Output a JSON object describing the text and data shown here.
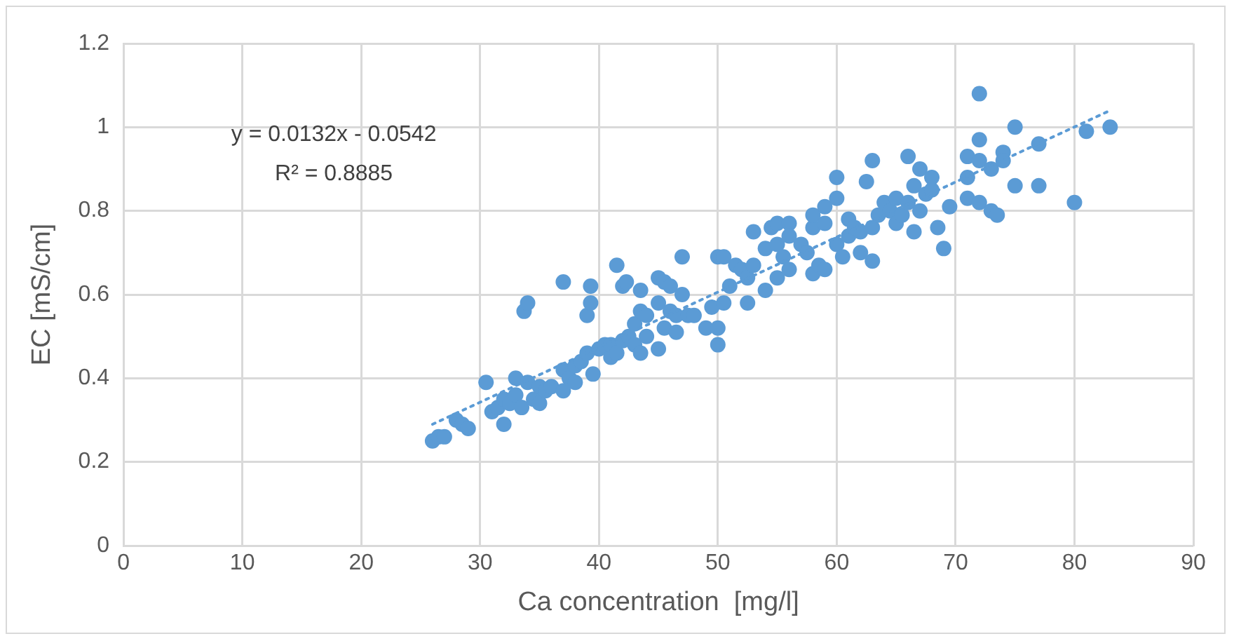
{
  "chart_data": {
    "type": "scatter",
    "xlabel": "Ca concentration  [mg/l]",
    "ylabel": "EC [mS/cm]",
    "xlim": [
      0,
      90
    ],
    "xticks": [
      0,
      10,
      20,
      30,
      40,
      50,
      60,
      70,
      80,
      90
    ],
    "ylim": [
      0,
      1.2
    ],
    "yticks": [
      0,
      0.2,
      0.4,
      0.6,
      0.8,
      1,
      1.2
    ],
    "grid": true,
    "legend": false,
    "marker": "circle",
    "annotations": [
      "y = 0.0132x - 0.0542",
      "R² = 0.8885"
    ],
    "series": [
      {
        "color": "#5b9bd5",
        "x": [
          26,
          26.5,
          27,
          28,
          28.5,
          29,
          30.5,
          31,
          31.5,
          32,
          32,
          32.5,
          33,
          33,
          33.5,
          33.7,
          34,
          34,
          34.5,
          35,
          35,
          35.5,
          36,
          37,
          37,
          37,
          37.5,
          38,
          38,
          38.5,
          39,
          39,
          39.3,
          39.3,
          39.5,
          40,
          40.5,
          41,
          41,
          41.5,
          41.5,
          42,
          42,
          42.3,
          42.5,
          43,
          43,
          43.5,
          43.5,
          43.5,
          44,
          44,
          45,
          45,
          45,
          45.5,
          45.5,
          46,
          46,
          46.5,
          46.5,
          47,
          47,
          47.5,
          48,
          49,
          49.5,
          50,
          50,
          50,
          50.5,
          50.5,
          51,
          51.5,
          52,
          52.5,
          52.5,
          53,
          53,
          54,
          54,
          54.5,
          55,
          55,
          55,
          55.5,
          56,
          56,
          56,
          57,
          57.5,
          58,
          58,
          58,
          58.5,
          59,
          59,
          59,
          60,
          60,
          60,
          60.5,
          61,
          61,
          61.5,
          62,
          62,
          62.5,
          63,
          63,
          63,
          63.5,
          64,
          64.5,
          65,
          65,
          65.5,
          66,
          66,
          66.5,
          66.5,
          67,
          67,
          67.5,
          68,
          68,
          68.5,
          69,
          69.5,
          71,
          71,
          71,
          72,
          72,
          72,
          72,
          73,
          73,
          73.5,
          74,
          74,
          75,
          75,
          77,
          77,
          80,
          81,
          83
        ],
        "values": [
          0.25,
          0.26,
          0.26,
          0.3,
          0.29,
          0.28,
          0.39,
          0.32,
          0.33,
          0.29,
          0.35,
          0.34,
          0.4,
          0.36,
          0.33,
          0.56,
          0.58,
          0.39,
          0.35,
          0.38,
          0.34,
          0.37,
          0.38,
          0.63,
          0.42,
          0.37,
          0.4,
          0.43,
          0.39,
          0.44,
          0.55,
          0.46,
          0.58,
          0.62,
          0.41,
          0.47,
          0.48,
          0.45,
          0.48,
          0.67,
          0.46,
          0.62,
          0.49,
          0.63,
          0.5,
          0.53,
          0.48,
          0.61,
          0.56,
          0.46,
          0.5,
          0.55,
          0.64,
          0.47,
          0.58,
          0.52,
          0.63,
          0.56,
          0.62,
          0.51,
          0.55,
          0.6,
          0.69,
          0.55,
          0.55,
          0.52,
          0.57,
          0.48,
          0.52,
          0.69,
          0.58,
          0.69,
          0.62,
          0.67,
          0.66,
          0.58,
          0.64,
          0.75,
          0.67,
          0.61,
          0.71,
          0.76,
          0.64,
          0.77,
          0.72,
          0.69,
          0.66,
          0.77,
          0.74,
          0.72,
          0.7,
          0.65,
          0.76,
          0.79,
          0.67,
          0.77,
          0.81,
          0.66,
          0.88,
          0.83,
          0.72,
          0.69,
          0.74,
          0.78,
          0.76,
          0.7,
          0.75,
          0.87,
          0.92,
          0.68,
          0.76,
          0.79,
          0.82,
          0.8,
          0.77,
          0.83,
          0.79,
          0.93,
          0.82,
          0.86,
          0.75,
          0.9,
          0.8,
          0.84,
          0.88,
          0.85,
          0.76,
          0.71,
          0.81,
          0.93,
          0.88,
          0.83,
          1.08,
          0.97,
          0.92,
          0.82,
          0.9,
          0.8,
          0.79,
          0.94,
          0.92,
          1.0,
          0.86,
          0.96,
          0.86,
          0.82,
          0.99,
          1.0
        ]
      },
      {
        "type": "line",
        "color": "#5b9bd5",
        "marker": "none",
        "line_style": "dotted",
        "x": [
          26,
          83
        ],
        "values": [
          0.29,
          1.04
        ]
      }
    ]
  }
}
